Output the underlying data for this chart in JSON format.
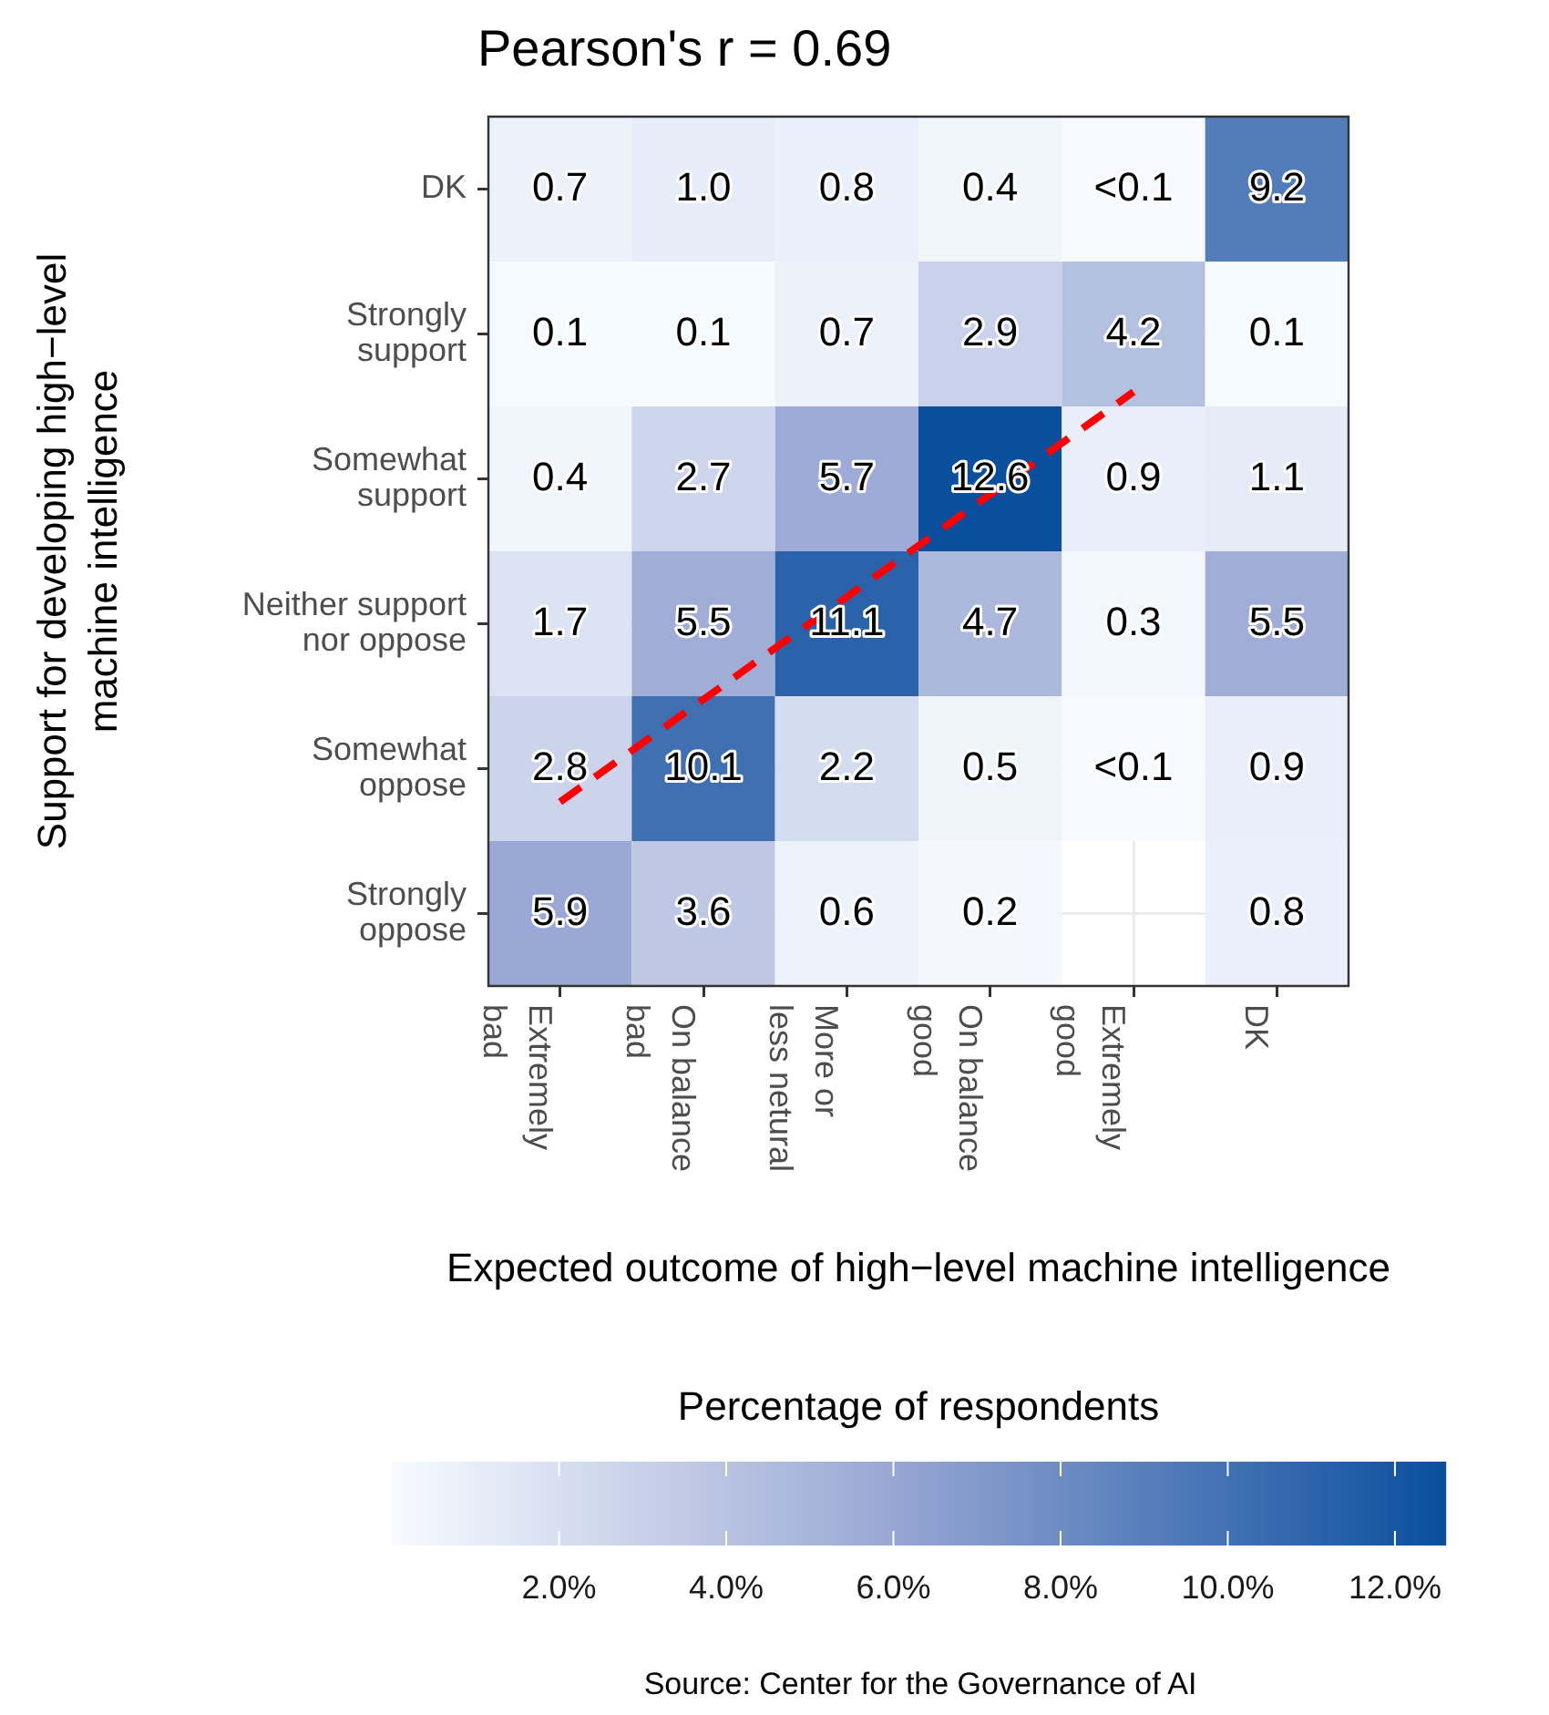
{
  "chart_data": {
    "type": "heatmap",
    "title": "Pearson's r = 0.69",
    "xlabel": "Expected outcome of high−level machine intelligence",
    "ylabel": "Support for developing high−level machine intelligence",
    "clabel": "Percentage of respondents",
    "categories": [
      "Extremely bad",
      "On balance bad",
      "More or less netural",
      "On balance good",
      "Extremely good",
      "DK"
    ],
    "y_categories": [
      "DK",
      "Strongly support",
      "Somewhat support",
      "Neither support nor oppose",
      "Somewhat oppose",
      "Strongly oppose"
    ],
    "cells": [
      [
        0.7,
        1.0,
        0.8,
        0.4,
        0.05,
        9.2
      ],
      [
        0.1,
        0.1,
        0.7,
        2.9,
        4.2,
        0.1
      ],
      [
        0.4,
        2.7,
        5.7,
        12.6,
        0.9,
        1.1
      ],
      [
        1.7,
        5.5,
        11.1,
        4.7,
        0.3,
        5.5
      ],
      [
        2.8,
        10.1,
        2.2,
        0.5,
        0.05,
        0.9
      ],
      [
        5.9,
        3.6,
        0.6,
        0.2,
        null,
        0.8
      ]
    ],
    "cell_labels": [
      [
        "0.7",
        "1.0",
        "0.8",
        "0.4",
        "<0.1",
        "9.2"
      ],
      [
        "0.1",
        "0.1",
        "0.7",
        "2.9",
        "4.2",
        "0.1"
      ],
      [
        "0.4",
        "2.7",
        "5.7",
        "12.6",
        "0.9",
        "1.1"
      ],
      [
        "1.7",
        "5.5",
        "11.1",
        "4.7",
        "0.3",
        "5.5"
      ],
      [
        "2.8",
        "10.1",
        "2.2",
        "0.5",
        "<0.1",
        "0.9"
      ],
      [
        "5.9",
        "3.6",
        "0.6",
        "0.2",
        null,
        "0.8"
      ]
    ],
    "clim": [
      0,
      12.6
    ],
    "cticks": [
      {
        "value": 2,
        "label": "2.0%"
      },
      {
        "value": 4,
        "label": "4.0%"
      },
      {
        "value": 6,
        "label": "6.0%"
      },
      {
        "value": 8,
        "label": "8.0%"
      },
      {
        "value": 10,
        "label": "10.0%"
      },
      {
        "value": 12,
        "label": "12.0%"
      }
    ],
    "series": [
      {
        "type": "line",
        "color": "#ff0000",
        "line_style": "dashed",
        "x": [
          "Extremely bad",
          "Extremely good"
        ],
        "values": [
          4.23,
          1.4
        ]
      }
    ],
    "grid": true,
    "annotations": [
      "Source: Center for the Governance of AI"
    ]
  }
}
